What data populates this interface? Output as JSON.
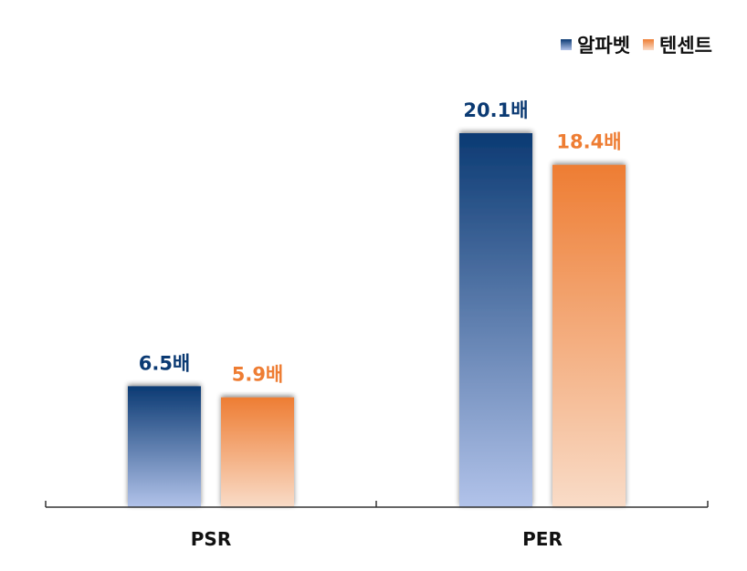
{
  "chart_data": {
    "type": "bar",
    "categories": [
      "PSR",
      "PER"
    ],
    "series": [
      {
        "name": "알파벳",
        "values": [
          6.5,
          20.1
        ],
        "labels": [
          "6.5배",
          "20.1배"
        ]
      },
      {
        "name": "텐센트",
        "values": [
          5.9,
          18.4
        ],
        "labels": [
          "5.9배",
          "18.4배"
        ]
      }
    ],
    "ylim": [
      0,
      20.1
    ],
    "grid": false,
    "legend": "top-right"
  },
  "colors": {
    "series1_top": "#0b3a73",
    "series1_bottom": "#b2c3ea",
    "series2_top": "#ee7d33",
    "series2_bottom": "#f9dcc8",
    "series1_label": "#0b3a73",
    "series2_label": "#ee7d33",
    "axis": "#333333"
  }
}
